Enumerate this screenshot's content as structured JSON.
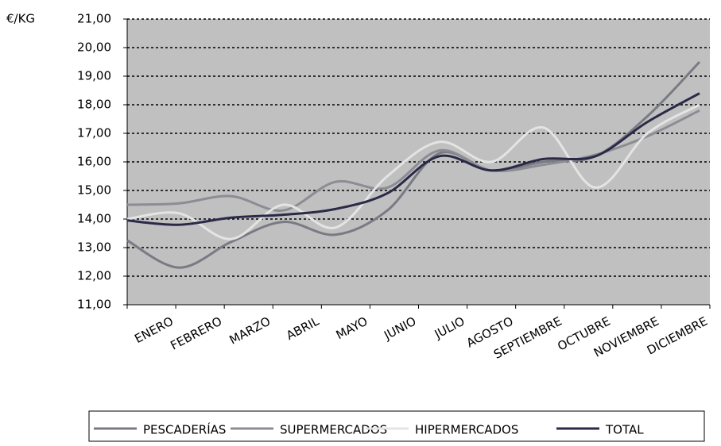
{
  "chart_data": {
    "type": "line",
    "y_label": "€/KG",
    "categories": [
      "ENERO",
      "FEBRERO",
      "MARZO",
      "ABRIL",
      "MAYO",
      "JUNIO",
      "JULIO",
      "AGOSTO",
      "SEPTIEMBRE",
      "OCTUBRE",
      "NOVIEMBRE",
      "DICIEMBRE"
    ],
    "series": [
      {
        "name": "PESCADERÍAS",
        "color": "#7a7a84",
        "values": [
          13.25,
          12.3,
          13.2,
          13.9,
          13.45,
          14.3,
          16.3,
          15.7,
          16.0,
          16.2,
          17.6,
          19.5
        ]
      },
      {
        "name": "SUPERMERCADOS",
        "color": "#8c8c94",
        "values": [
          14.5,
          14.55,
          14.8,
          14.3,
          15.3,
          15.1,
          16.4,
          15.7,
          15.9,
          16.25,
          16.9,
          17.8
        ]
      },
      {
        "name": "HIPERMERCADOS",
        "color": "#e4e4e4",
        "values": [
          14.0,
          14.2,
          13.3,
          14.5,
          13.7,
          15.5,
          16.7,
          16.0,
          17.2,
          15.1,
          17.0,
          18.0
        ]
      },
      {
        "name": "TOTAL",
        "color": "#2a2a48",
        "values": [
          13.95,
          13.8,
          14.05,
          14.15,
          14.35,
          14.9,
          16.2,
          15.7,
          16.1,
          16.2,
          17.4,
          18.4
        ]
      }
    ],
    "ylim": [
      11,
      21
    ],
    "yticks": [
      {
        "value": 11,
        "label": "11,00"
      },
      {
        "value": 12,
        "label": "12,00"
      },
      {
        "value": 13,
        "label": "13,00"
      },
      {
        "value": 14,
        "label": "14,00"
      },
      {
        "value": 15,
        "label": "15,00"
      },
      {
        "value": 16,
        "label": "16,00"
      },
      {
        "value": 17,
        "label": "17,00"
      },
      {
        "value": 18,
        "label": "18,00"
      },
      {
        "value": 19,
        "label": "19,00"
      },
      {
        "value": 20,
        "label": "20,00"
      },
      {
        "value": 21,
        "label": "21,00"
      }
    ],
    "grid": true,
    "legend": "bottom"
  }
}
